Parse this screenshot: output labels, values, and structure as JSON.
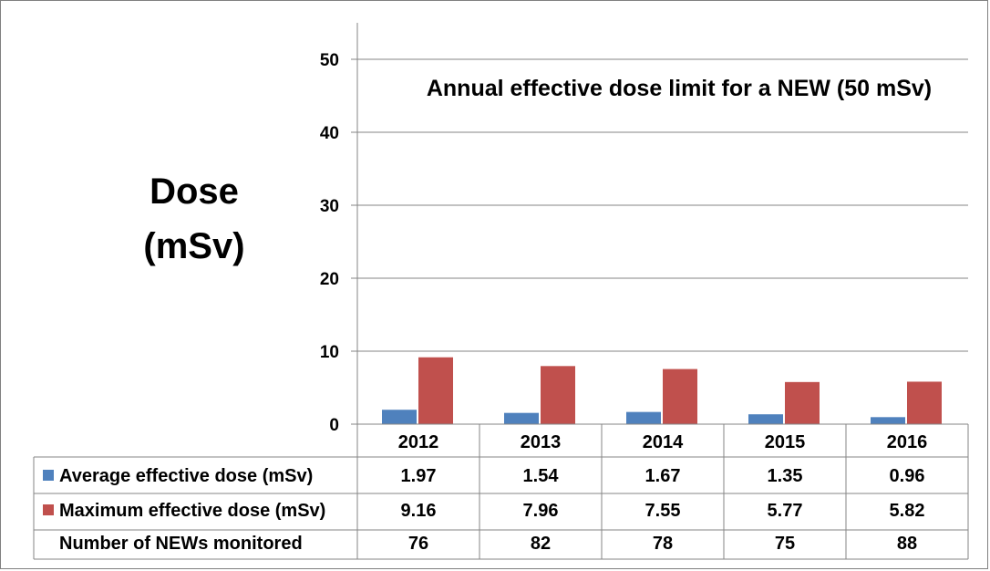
{
  "chart_data": {
    "type": "bar",
    "ylabel_line1": "Dose",
    "ylabel_line2": "(mSv)",
    "ylim": [
      0,
      55
    ],
    "yticks": [
      0,
      10,
      20,
      30,
      40,
      50
    ],
    "grid": true,
    "annotation": "Annual effective dose limit for a NEW  (50 mSv)",
    "categories": [
      "2012",
      "2013",
      "2014",
      "2015",
      "2016"
    ],
    "series": [
      {
        "name": "Average effective dose (mSv)",
        "color": "#4F81BD",
        "values": [
          1.97,
          1.54,
          1.67,
          1.35,
          0.96
        ],
        "labels": [
          "1.97",
          "1.54",
          "1.67",
          "1.35",
          "0.96"
        ]
      },
      {
        "name": "Maximum effective dose (mSv)",
        "color": "#C0504D",
        "values": [
          9.16,
          7.96,
          7.55,
          5.77,
          5.82
        ],
        "labels": [
          "9.16",
          "7.96",
          "7.55",
          "5.77",
          "5.82"
        ]
      }
    ],
    "table_extra_row": {
      "name": "Number of NEWs monitored",
      "values": [
        "76",
        "82",
        "78",
        "75",
        "88"
      ]
    }
  }
}
